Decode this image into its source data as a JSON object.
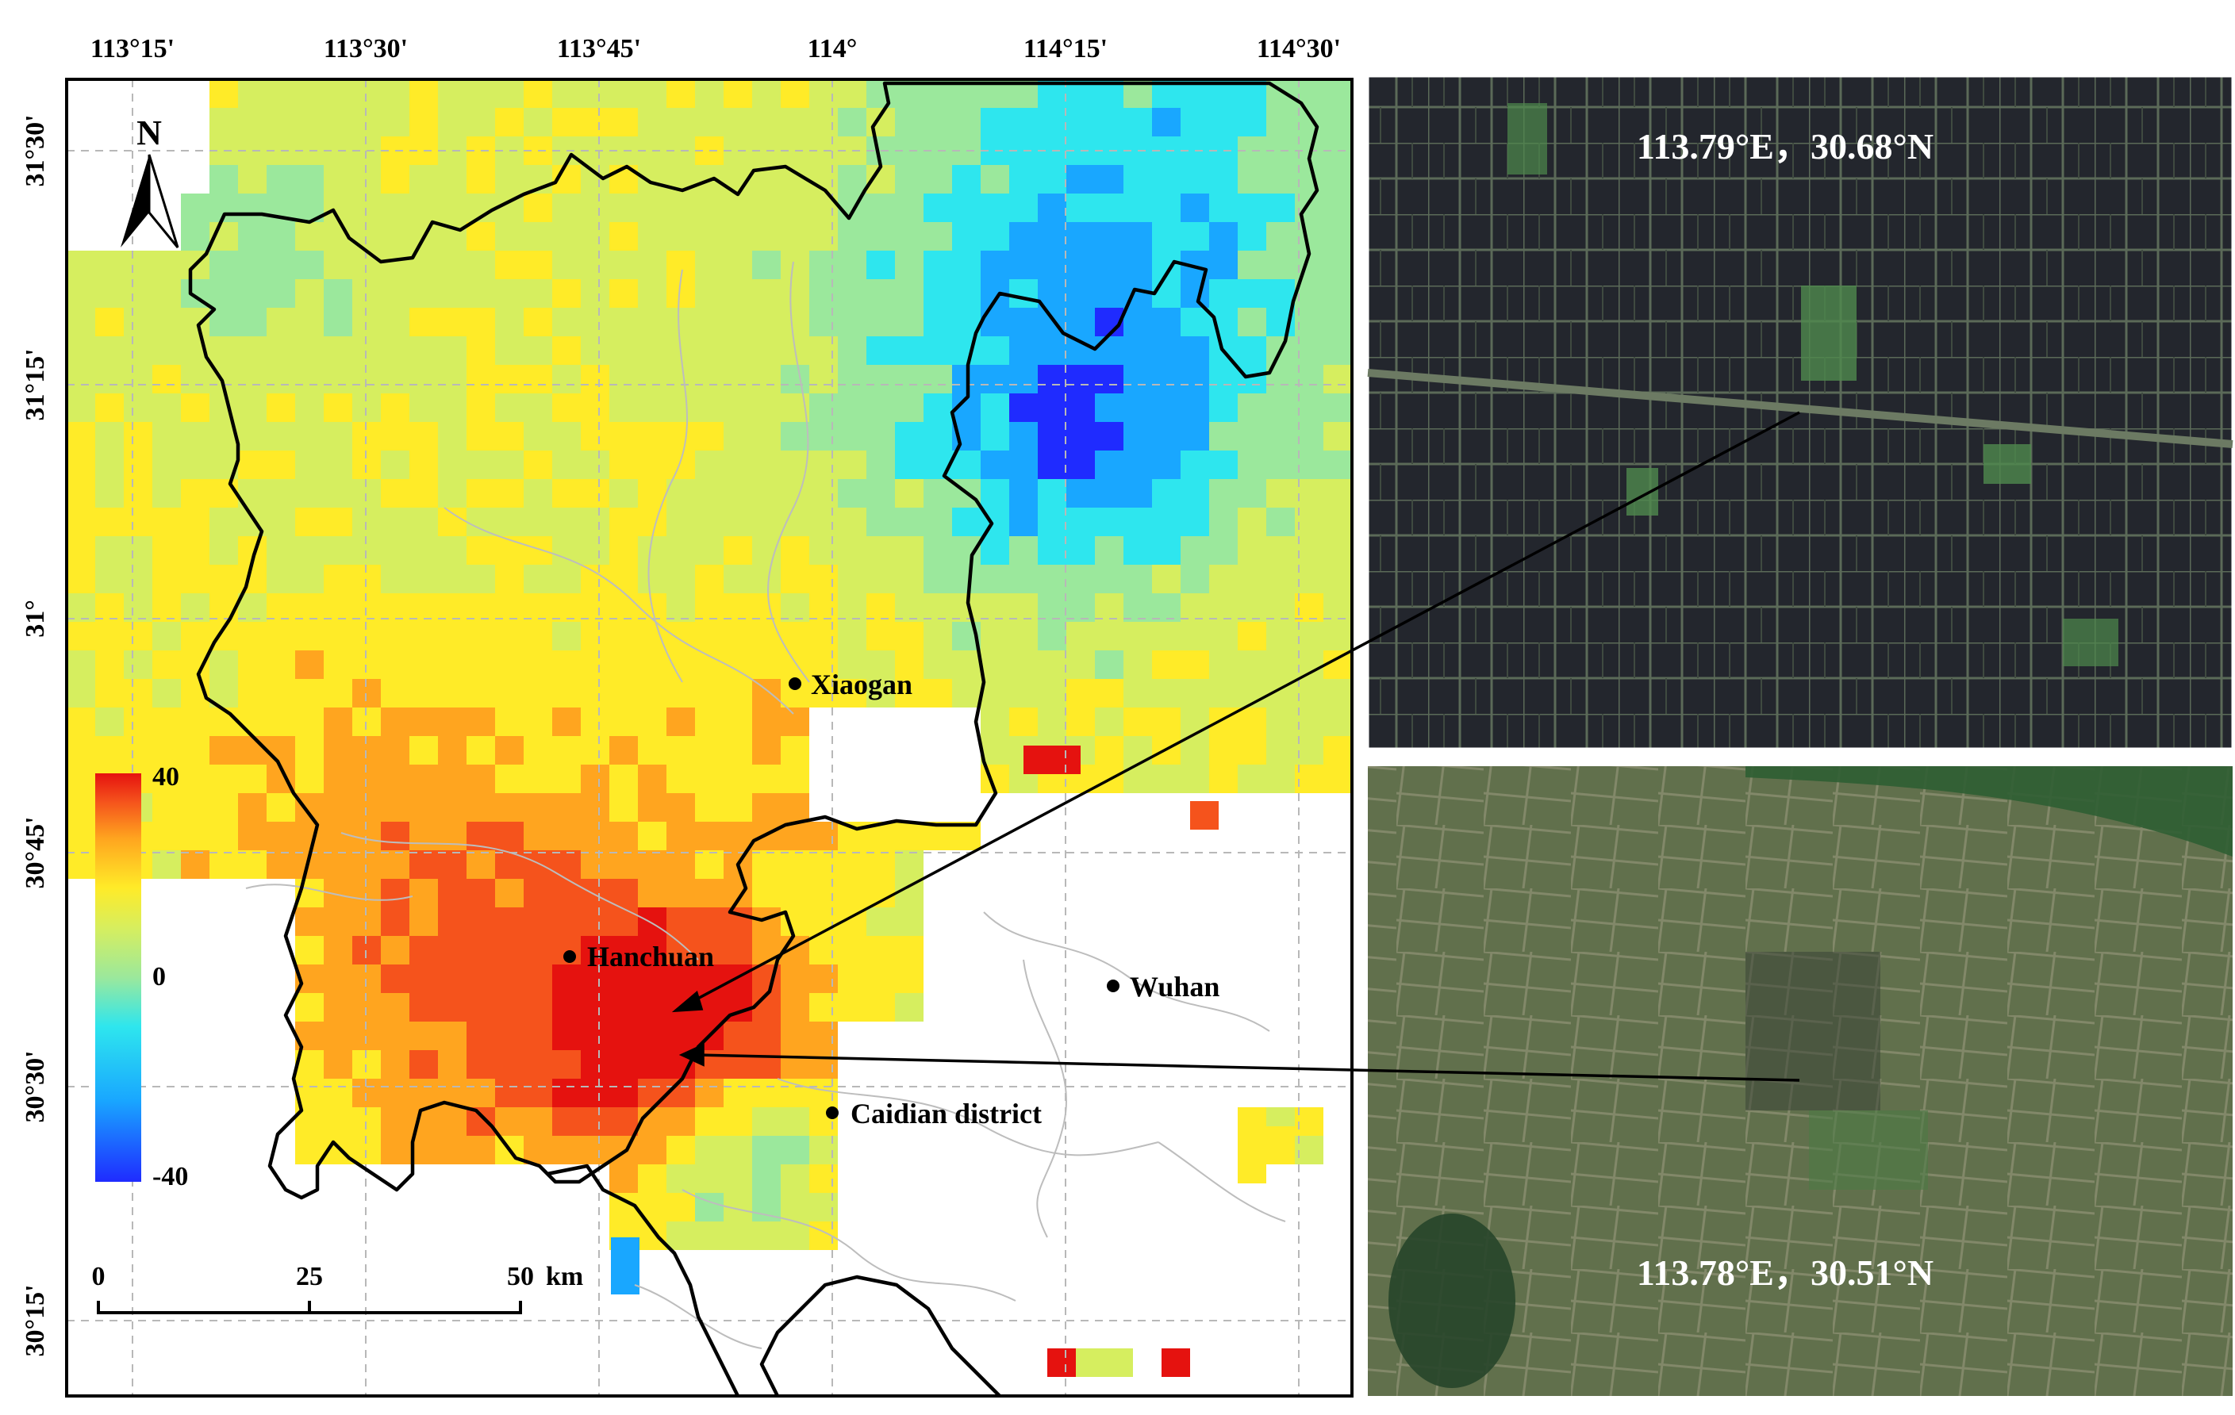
{
  "map": {
    "lon_ticks": [
      "113°15'",
      "113°30'",
      "113°45'",
      "114°",
      "114°15'",
      "114°30'"
    ],
    "lat_ticks": [
      "31°30'",
      "31°15'",
      "31°",
      "30°45'",
      "30°30'",
      "30°15'"
    ],
    "north_label": "N",
    "cities": [
      {
        "name": "Xiaogan"
      },
      {
        "name": "Hanchuan"
      },
      {
        "name": "Wuhan"
      },
      {
        "name": "Caidian district"
      }
    ],
    "legend": {
      "max": "40",
      "mid": "0",
      "min": "-40"
    },
    "scale_bar": {
      "t0": "0",
      "t1": "25",
      "t2": "50",
      "unit": "km"
    },
    "colormap": [
      "#1f2bff",
      "#19a7ff",
      "#2ee6ee",
      "#9be89c",
      "#d6ee5f",
      "#ffeb28",
      "#ffa51f",
      "#f5531c",
      "#e5120f"
    ]
  },
  "photos": [
    {
      "label": "113.79°E，30.68°N"
    },
    {
      "label": "113.78°E，30.51°N"
    }
  ]
}
